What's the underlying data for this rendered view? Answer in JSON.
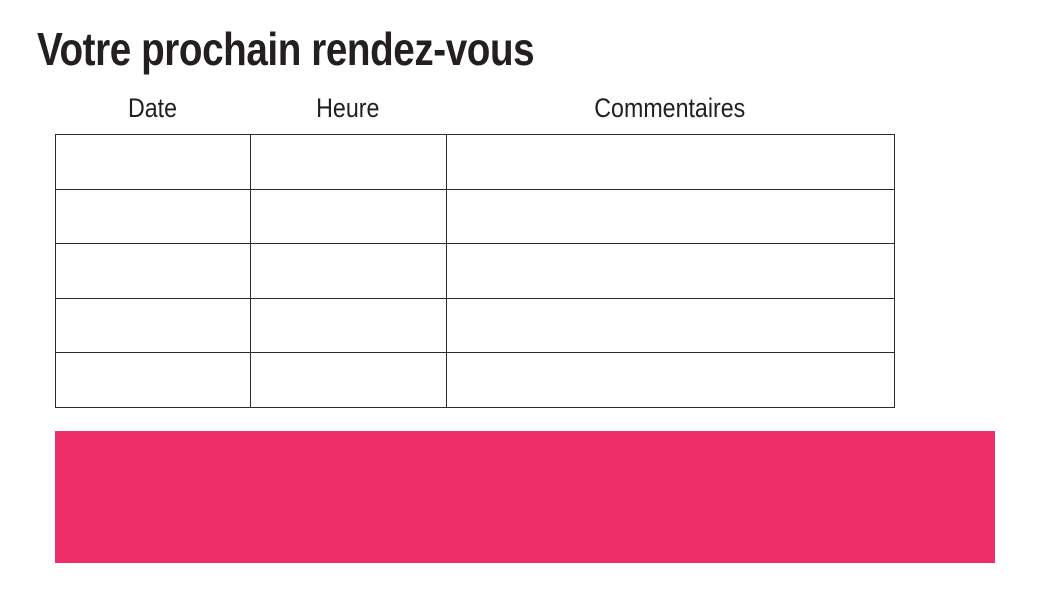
{
  "page": {
    "title": "Votre prochain rendez-vous"
  },
  "colors": {
    "accent_pink": "#ED2E67",
    "text": "#231F20",
    "table_border": "#2B2B2B",
    "background": "#FFFFFF"
  },
  "table": {
    "columns": [
      {
        "key": "date",
        "label": "Date"
      },
      {
        "key": "heure",
        "label": "Heure"
      },
      {
        "key": "commentaires",
        "label": "Commentaires"
      }
    ],
    "rows": [
      {
        "date": "",
        "heure": "",
        "commentaires": ""
      },
      {
        "date": "",
        "heure": "",
        "commentaires": ""
      },
      {
        "date": "",
        "heure": "",
        "commentaires": ""
      },
      {
        "date": "",
        "heure": "",
        "commentaires": ""
      },
      {
        "date": "",
        "heure": "",
        "commentaires": ""
      }
    ]
  },
  "banner": {
    "text": ""
  }
}
